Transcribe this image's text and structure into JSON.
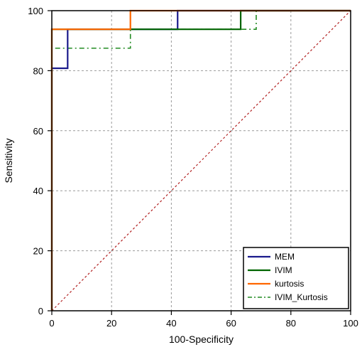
{
  "chart_data": {
    "type": "line",
    "title": "",
    "xlabel": "100-Specificity",
    "ylabel": "Sensitivity",
    "xlim": [
      0,
      100
    ],
    "ylim": [
      0,
      100
    ],
    "xticks": [
      "0",
      "20",
      "40",
      "60",
      "80",
      "100"
    ],
    "yticks": [
      "0",
      "20",
      "40",
      "60",
      "80",
      "100"
    ],
    "grid": true,
    "legend_position": "bottom-right",
    "series": [
      {
        "name": "MEM",
        "color": "#1a1a8c",
        "style": "solid",
        "points": [
          [
            0,
            0
          ],
          [
            0,
            80.8
          ],
          [
            5.3,
            80.8
          ],
          [
            5.3,
            93.8
          ],
          [
            42.1,
            93.8
          ],
          [
            42.1,
            100
          ],
          [
            100,
            100
          ]
        ]
      },
      {
        "name": "IVIM",
        "color": "#006400",
        "style": "solid",
        "points": [
          [
            0,
            0
          ],
          [
            0,
            93.8
          ],
          [
            26.3,
            93.8
          ],
          [
            63.2,
            93.8
          ],
          [
            63.2,
            100
          ],
          [
            100,
            100
          ]
        ]
      },
      {
        "name": "kurtosis",
        "color": "#ff6600",
        "style": "solid",
        "points": [
          [
            0,
            0
          ],
          [
            0,
            93.8
          ],
          [
            26.3,
            93.8
          ],
          [
            26.3,
            100
          ],
          [
            100,
            100
          ]
        ]
      },
      {
        "name": "IVIM_Kurtosis",
        "color": "#228b22",
        "style": "dashed",
        "points": [
          [
            0,
            0
          ],
          [
            0,
            87.5
          ],
          [
            26.3,
            87.5
          ],
          [
            26.3,
            93.8
          ],
          [
            68.4,
            93.8
          ],
          [
            68.4,
            100
          ],
          [
            100,
            100
          ]
        ]
      }
    ],
    "reference_line": {
      "color": "#b22222",
      "style": "dotted",
      "points": [
        [
          0,
          0
        ],
        [
          100,
          100
        ]
      ]
    }
  }
}
